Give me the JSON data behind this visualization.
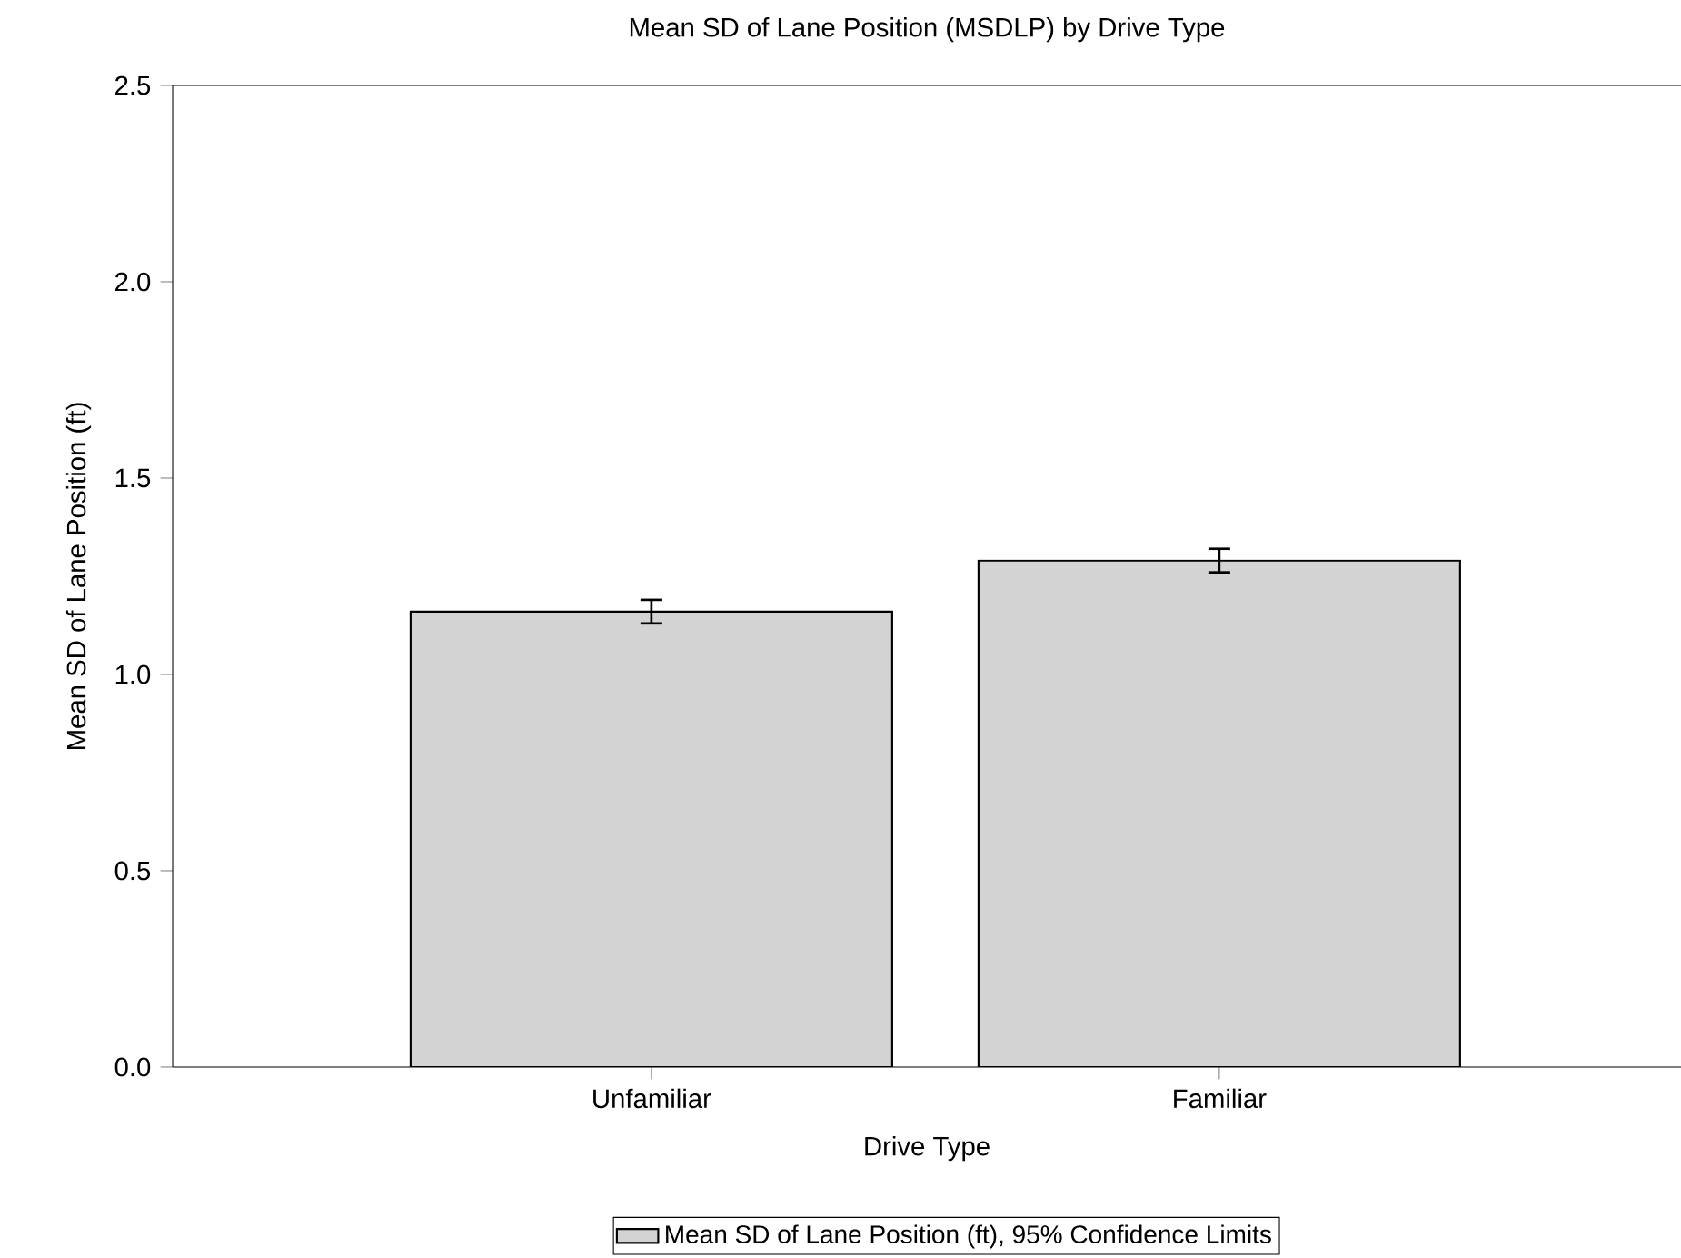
{
  "chart_data": {
    "type": "bar",
    "title": "Mean SD of Lane Position (MSDLP) by Drive Type",
    "xlabel": "Drive Type",
    "ylabel": "Mean SD of Lane Position (ft)",
    "categories": [
      "Unfamiliar",
      "Familiar"
    ],
    "series": [
      {
        "name": "Mean SD of Lane Position (ft), 95% Confidence Limits",
        "color": "#d3d3d3",
        "values": [
          1.16,
          1.29
        ],
        "errors": [
          0.03,
          0.03
        ]
      }
    ],
    "ylim": [
      0,
      2.5
    ],
    "yticks": [
      {
        "value": 0,
        "label": "0.0"
      },
      0.5,
      {
        "value": 1,
        "label": "1.0"
      },
      1.5,
      {
        "value": 2,
        "label": "2.0"
      },
      2.5
    ],
    "grid": false,
    "legend": "bottom"
  }
}
